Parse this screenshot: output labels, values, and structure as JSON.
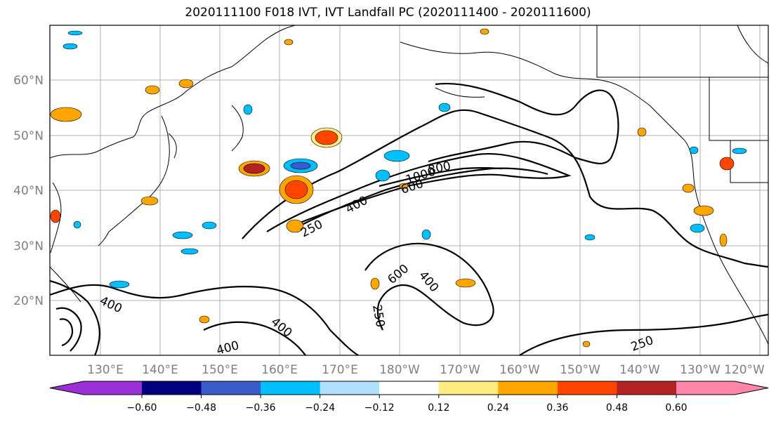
{
  "title": "2020111100 F018 IVT, IVT Landfall PC (2020111400 - 2020111600)",
  "lat_labels": [
    "60°N",
    "50°N",
    "40°N",
    "30°N",
    "20°N"
  ],
  "lon_labels": [
    "130°E",
    "140°E",
    "150°E",
    "160°E",
    "170°E",
    "180°W",
    "170°W",
    "160°W",
    "150°W",
    "140°W",
    "130°W",
    "120°W"
  ],
  "colorbar": {
    "ticks": [
      "−0.60",
      "−0.48",
      "−0.36",
      "−0.24",
      "−0.12",
      "0.12",
      "0.24",
      "0.36",
      "0.48",
      "0.60"
    ],
    "colors": [
      "#9b30d9",
      "#000080",
      "#3a5bcc",
      "#00bfff",
      "#b0e0ff",
      "#ffffff",
      "#ffeb80",
      "#ffa500",
      "#ff4500",
      "#b22222",
      "#ff85a8"
    ]
  },
  "contour_labels": [
    "250",
    "400",
    "600",
    "800",
    "1000",
    "600",
    "400",
    "250",
    "400",
    "400",
    "400",
    "250"
  ]
}
